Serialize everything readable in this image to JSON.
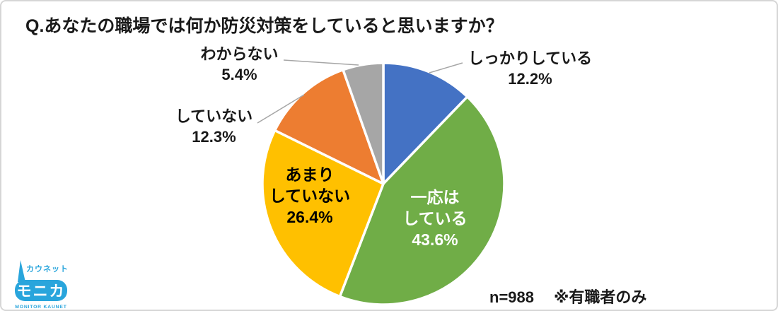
{
  "title": "Q.あなたの職場では何か防災対策をしていると思いますか？",
  "chart_data": {
    "type": "pie",
    "title": "Q.あなたの職場では何か防災対策をしていると思いますか？",
    "start_angle_deg": 0,
    "direction": "clockwise",
    "total": 100,
    "segments": [
      {
        "label": "しっかりしている",
        "value": 12.2,
        "pct_text": "12.2%",
        "color": "#4472C4",
        "label_position": "outside"
      },
      {
        "label": "一応はしている",
        "value": 43.6,
        "pct_text": "43.6%",
        "color": "#70AD47",
        "label_position": "inside",
        "label_lines": [
          "一応は",
          "している"
        ]
      },
      {
        "label": "あまりしていない",
        "value": 26.4,
        "pct_text": "26.4%",
        "color": "#FFC000",
        "label_position": "inside",
        "label_lines": [
          "あまり",
          "していない"
        ]
      },
      {
        "label": "していない",
        "value": 12.3,
        "pct_text": "12.3%",
        "color": "#ED7D31",
        "label_position": "outside"
      },
      {
        "label": "わからない",
        "value": 5.4,
        "pct_text": "5.4%",
        "color": "#A6A6A6",
        "label_position": "outside"
      }
    ],
    "annotations": [
      "n=988",
      "※有職者のみ"
    ]
  },
  "logo": {
    "top_text": "カウネット",
    "main_text": "モニカ",
    "bottom_text": "MONITOR KAUNET",
    "color": "#29A5DC"
  }
}
